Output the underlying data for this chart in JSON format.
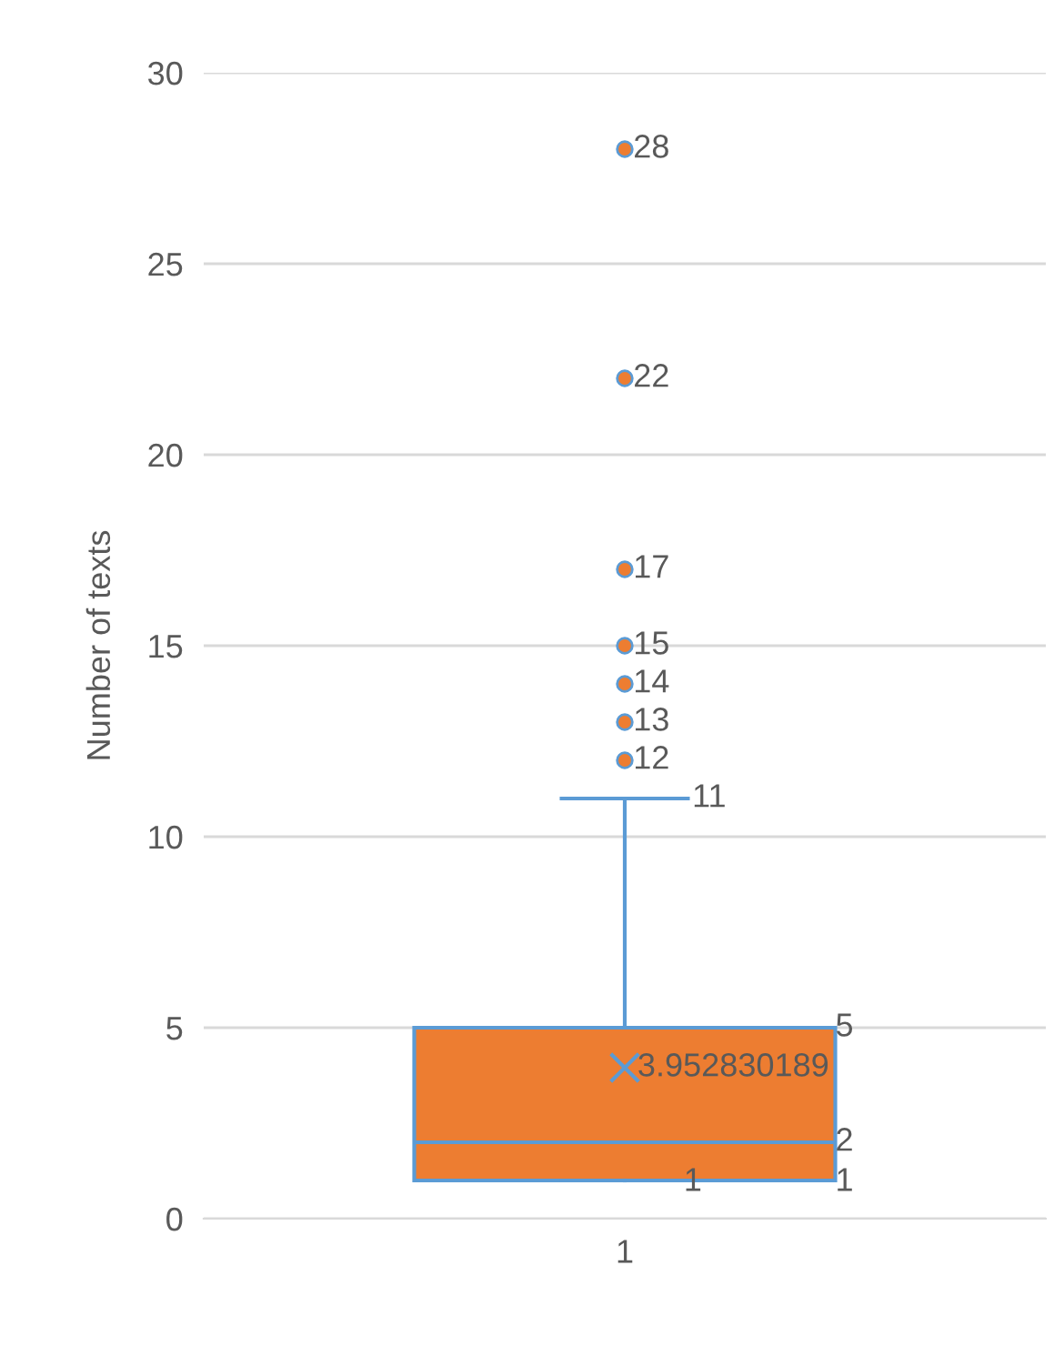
{
  "chart_data": {
    "type": "box",
    "ylabel": "Number of texts",
    "categories": [
      "1"
    ],
    "boxes": [
      {
        "low": 1,
        "q1": 1,
        "median": 2,
        "q3": 5,
        "high": 11,
        "mean": 3.952830189,
        "outliers": [
          12,
          13,
          14,
          15,
          17,
          22,
          28
        ]
      }
    ],
    "color": "#ed7d31",
    "ylim": [
      0,
      30
    ],
    "yticks": [
      0,
      5,
      10,
      15,
      20,
      25,
      30
    ],
    "grid": "y",
    "annotations": [
      "28",
      "22",
      "17",
      "15",
      "14",
      "13",
      "12",
      "11",
      "5",
      "3.952830189",
      "2",
      "1",
      "1"
    ]
  }
}
